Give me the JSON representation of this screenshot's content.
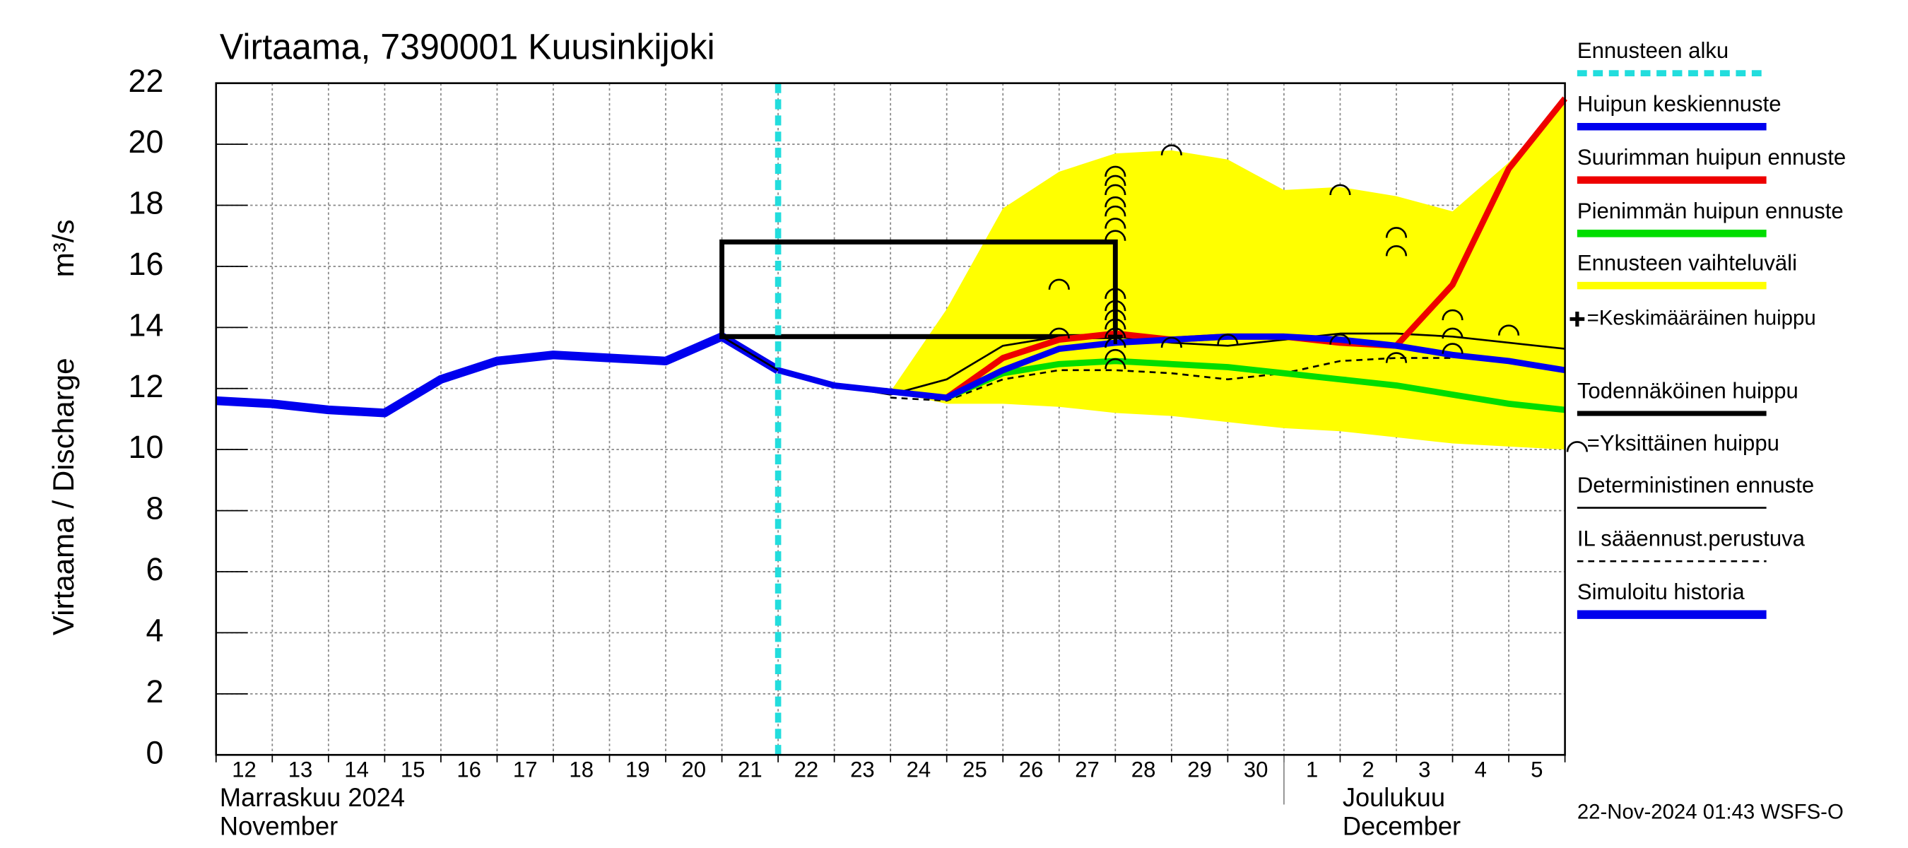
{
  "chart_data": {
    "type": "line",
    "title": "Virtaama, 7390001 Kuusinkijoki",
    "y_label": "Virtaama / Discharge",
    "y_unit": "m³/s",
    "categories": [
      "12",
      "13",
      "14",
      "15",
      "16",
      "17",
      "18",
      "19",
      "20",
      "21",
      "22",
      "23",
      "24",
      "25",
      "26",
      "27",
      "28",
      "29",
      "30",
      "1",
      "2",
      "3",
      "4",
      "5",
      null
    ],
    "month_labels": [
      {
        "category": "12",
        "fi": "Marraskuu 2024",
        "en": "November"
      },
      {
        "category": "1",
        "fi": "Joulukuu",
        "en": "December"
      }
    ],
    "timestamp": "22-Nov-2024 01:43 WSFS-O",
    "ylim": [
      0,
      22
    ],
    "yticks": [
      0,
      2,
      4,
      6,
      8,
      10,
      12,
      14,
      16,
      18,
      20,
      22
    ],
    "grid": true,
    "forecast_start": {
      "name": "Ennusteen alku",
      "category": "22",
      "color": "#22dddd"
    },
    "range": {
      "name": "Ennusteen vaihteluväli",
      "color": "#ffff00",
      "upper": [
        null,
        null,
        null,
        null,
        null,
        null,
        null,
        null,
        null,
        null,
        null,
        null,
        11.9,
        14.6,
        17.9,
        19.1,
        19.7,
        19.8,
        19.5,
        18.5,
        18.6,
        18.3,
        17.8,
        19.4,
        21.5
      ],
      "lower": [
        null,
        null,
        null,
        null,
        null,
        null,
        null,
        null,
        null,
        null,
        null,
        null,
        11.9,
        11.5,
        11.5,
        11.4,
        11.2,
        11.1,
        10.9,
        10.7,
        10.6,
        10.4,
        10.2,
        10.1,
        10.0
      ]
    },
    "series": [
      {
        "name": "Huipun keskiennuste",
        "color": "#0000ee",
        "width": 5,
        "values": [
          null,
          null,
          null,
          null,
          null,
          null,
          null,
          null,
          null,
          null,
          12.6,
          12.1,
          11.9,
          11.7,
          12.6,
          13.3,
          13.5,
          13.6,
          13.7,
          13.7,
          13.6,
          13.4,
          13.1,
          12.9,
          12.6
        ]
      },
      {
        "name": "Suurimman huipun ennuste",
        "color": "#ee0000",
        "width": 5,
        "values": [
          null,
          null,
          null,
          null,
          null,
          null,
          null,
          null,
          null,
          null,
          null,
          null,
          null,
          11.7,
          13.0,
          13.6,
          13.8,
          13.6,
          13.7,
          13.7,
          13.5,
          13.4,
          15.4,
          19.2,
          21.5
        ]
      },
      {
        "name": "Pienimmän huipun ennuste",
        "color": "#00dd00",
        "width": 5,
        "values": [
          null,
          null,
          null,
          null,
          null,
          null,
          null,
          null,
          null,
          null,
          null,
          null,
          null,
          11.7,
          12.5,
          12.8,
          12.9,
          12.8,
          12.7,
          12.5,
          12.3,
          12.1,
          11.8,
          11.5,
          11.3
        ]
      },
      {
        "name": "Deterministinen ennuste",
        "color": "#000000",
        "width": 1.5,
        "values": [
          null,
          null,
          null,
          null,
          null,
          null,
          null,
          null,
          null,
          13.7,
          12.6,
          12.1,
          11.8,
          12.3,
          13.4,
          13.7,
          13.7,
          13.5,
          13.4,
          13.6,
          13.8,
          13.8,
          13.7,
          13.5,
          13.3
        ]
      },
      {
        "name": "IL sääennust.perustuva",
        "color": "#000000",
        "width": 1.5,
        "dash": true,
        "values": [
          null,
          null,
          null,
          null,
          null,
          null,
          null,
          null,
          null,
          null,
          null,
          null,
          11.7,
          11.6,
          12.3,
          12.6,
          12.6,
          12.5,
          12.3,
          12.5,
          12.9,
          13.0,
          13.0,
          null,
          null
        ]
      },
      {
        "name": "Simuloitu historia",
        "color": "#0000ee",
        "width": 7,
        "values": [
          11.6,
          11.5,
          11.3,
          11.2,
          12.3,
          12.9,
          13.1,
          13.0,
          12.9,
          13.7,
          12.6,
          null,
          null,
          null,
          null,
          null,
          null,
          null,
          null,
          null,
          null,
          null,
          null,
          null,
          null
        ]
      }
    ],
    "mean_peak": {
      "name": "=Keskimääräinen huippu",
      "category": "28",
      "value": 13.7
    },
    "probable_peak": {
      "name": "Todennäköinen huippu",
      "start": "21",
      "end": "28",
      "low": 13.7,
      "high": 16.8
    },
    "individual_peaks": {
      "name": "=Yksittäinen huippu",
      "peaks": [
        {
          "category": "27",
          "values": [
            15.4,
            13.8
          ]
        },
        {
          "category": "28",
          "values": [
            19.1,
            18.8,
            18.5,
            18.1,
            17.8,
            17.4,
            17.0,
            15.1,
            14.7,
            14.4,
            14.1,
            13.8,
            13.5,
            13.1,
            12.8
          ]
        },
        {
          "category": "29",
          "values": [
            19.8,
            13.5
          ]
        },
        {
          "category": "30",
          "values": [
            13.6
          ]
        },
        {
          "category": "2",
          "values": [
            18.5,
            13.6
          ]
        },
        {
          "category": "3",
          "values": [
            17.1,
            16.5,
            13.0
          ]
        },
        {
          "category": "4",
          "values": [
            14.4,
            13.8,
            13.3
          ]
        },
        {
          "category": "5",
          "values": [
            13.9
          ]
        }
      ]
    }
  }
}
